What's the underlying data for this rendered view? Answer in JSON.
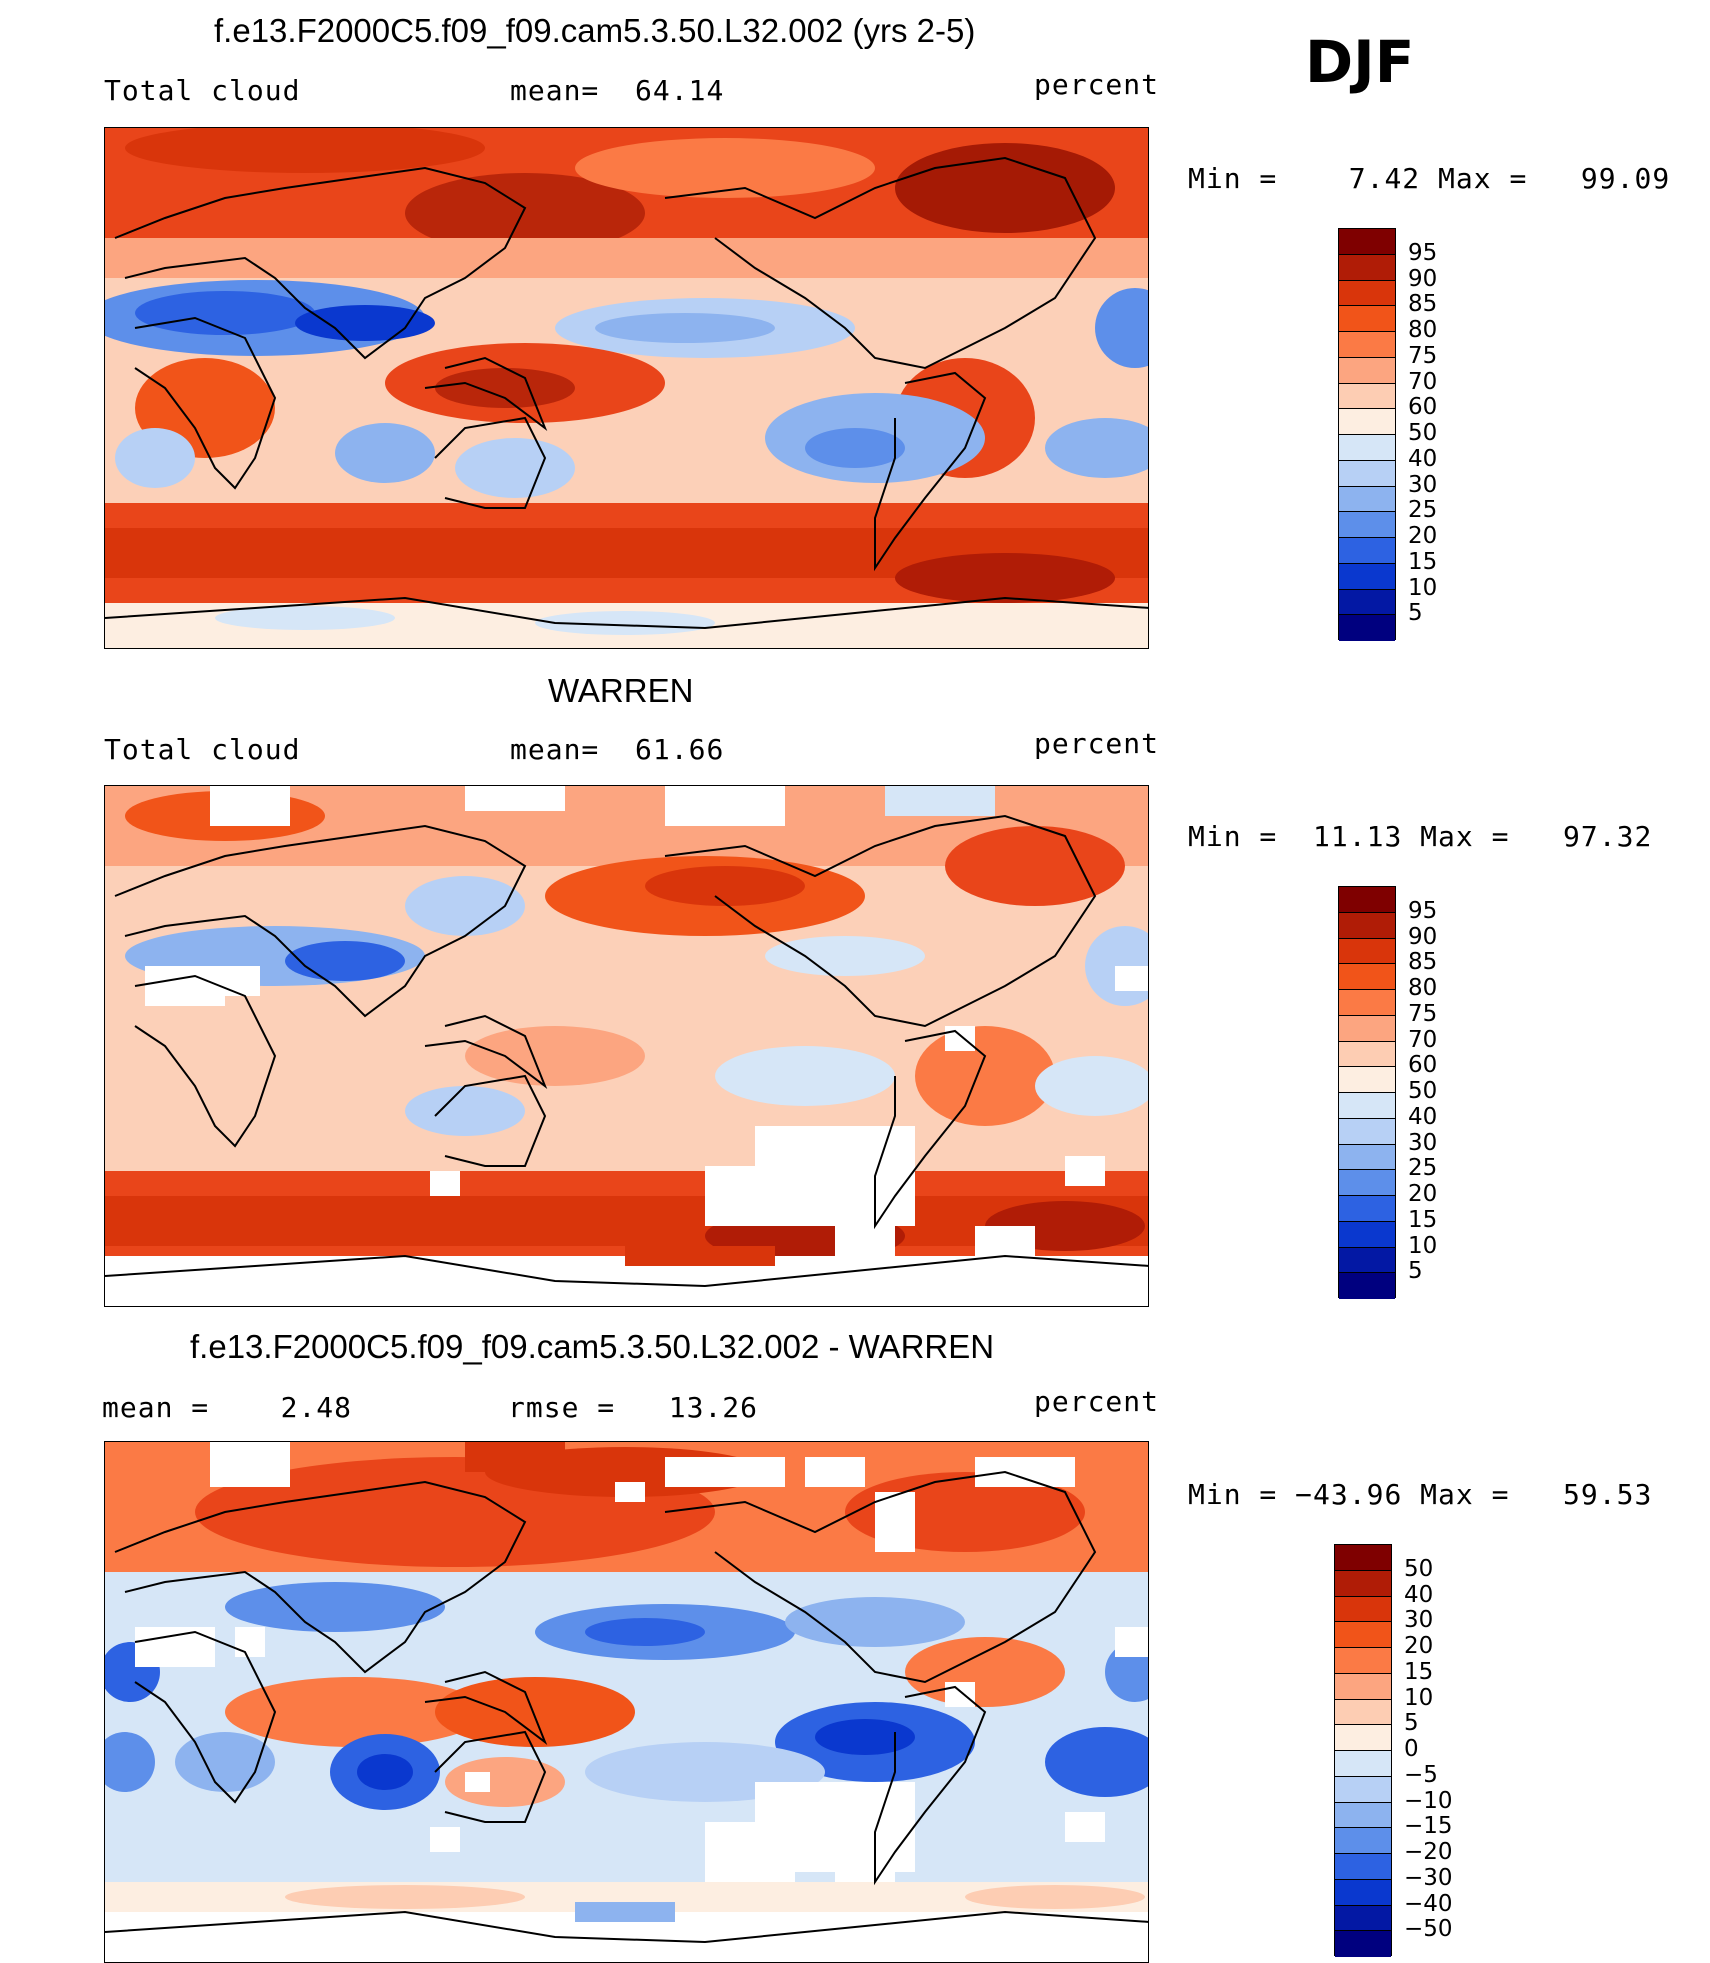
{
  "season": "DJF",
  "units": "percent",
  "panels": [
    {
      "title": "f.e13.F2000C5.f09_f09.cam5.3.50.L32.002 (yrs 2-5)",
      "left_label": "Total cloud",
      "center_label": "mean=",
      "center_value": "64.14",
      "right_label": "percent",
      "minmax": {
        "min_label": "Min =",
        "min": "7.42",
        "max_label": "Max =",
        "max": "99.09"
      },
      "colorbar": {
        "colors": [
          "#7f0000",
          "#b01c06",
          "#d9350b",
          "#f15419",
          "#fb7a45",
          "#fca580",
          "#fdcdb3",
          "#fdeee1",
          "#d6e6f7",
          "#b7d0f5",
          "#8db3ef",
          "#5d8fea",
          "#2d62e2",
          "#0a38cf",
          "#0318a4",
          "#00007f"
        ],
        "labels": [
          "95",
          "90",
          "85",
          "80",
          "75",
          "70",
          "60",
          "50",
          "40",
          "30",
          "25",
          "20",
          "15",
          "10",
          "5"
        ]
      }
    },
    {
      "title": "WARREN",
      "left_label": "Total cloud",
      "center_label": "mean=",
      "center_value": "61.66",
      "right_label": "percent",
      "minmax": {
        "min_label": "Min =",
        "min": "11.13",
        "max_label": "Max =",
        "max": "97.32"
      },
      "colorbar": {
        "colors": [
          "#7f0000",
          "#b01c06",
          "#d9350b",
          "#f15419",
          "#fb7a45",
          "#fca580",
          "#fdcdb3",
          "#fdeee1",
          "#d6e6f7",
          "#b7d0f5",
          "#8db3ef",
          "#5d8fea",
          "#2d62e2",
          "#0a38cf",
          "#0318a4",
          "#00007f"
        ],
        "labels": [
          "95",
          "90",
          "85",
          "80",
          "75",
          "70",
          "60",
          "50",
          "40",
          "30",
          "25",
          "20",
          "15",
          "10",
          "5"
        ]
      }
    },
    {
      "title": "f.e13.F2000C5.f09_f09.cam5.3.50.L32.002 - WARREN",
      "left_label": "mean =",
      "left_value": "2.48",
      "center_label": "rmse =",
      "center_value": "13.26",
      "right_label": "percent",
      "minmax": {
        "min_label": "Min =",
        "min": "−43.96",
        "max_label": "Max =",
        "max": "59.53"
      },
      "colorbar": {
        "colors": [
          "#7f0000",
          "#b01c06",
          "#d9350b",
          "#f15419",
          "#fb7a45",
          "#fca580",
          "#fdcdb3",
          "#fdeee1",
          "#d6e6f7",
          "#b7d0f5",
          "#8db3ef",
          "#5d8fea",
          "#2d62e2",
          "#0a38cf",
          "#0318a4",
          "#00007f"
        ],
        "labels": [
          "50",
          "40",
          "30",
          "20",
          "15",
          "10",
          "5",
          "0",
          "−5",
          "−10",
          "−15",
          "−20",
          "−30",
          "−40",
          "−50"
        ]
      }
    }
  ]
}
